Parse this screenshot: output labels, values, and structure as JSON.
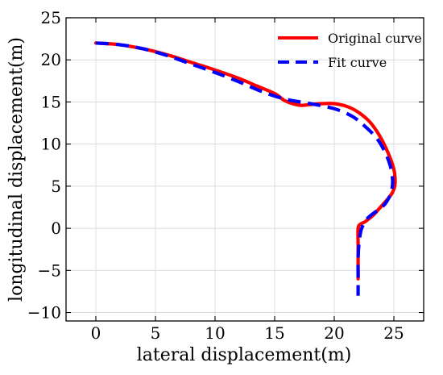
{
  "chart_data": {
    "type": "line",
    "title": "",
    "xlabel": "lateral displacement(m)",
    "ylabel": "longitudinal displacement(m)",
    "xlim": [
      -2.5,
      27.5
    ],
    "ylim": [
      -11,
      25
    ],
    "xticks": [
      0,
      5,
      10,
      15,
      20,
      25
    ],
    "yticks": [
      -10,
      -5,
      0,
      5,
      10,
      15,
      20,
      25
    ],
    "xtick_labels": [
      "0",
      "5",
      "10",
      "15",
      "20",
      "25"
    ],
    "ytick_labels": [
      "−10",
      "−5",
      "0",
      "5",
      "10",
      "15",
      "20",
      "25"
    ],
    "grid": true,
    "legend_position": "top-right",
    "series": [
      {
        "name": "Original curve",
        "color": "#ff0000",
        "style": "solid",
        "x": [
          0,
          2,
          4,
          6,
          8,
          10,
          12,
          13.5,
          15,
          15.8,
          16.5,
          17.2,
          18,
          19,
          20,
          21,
          22,
          23,
          23.8,
          24.5,
          25,
          25.1,
          24.9,
          24.5,
          24,
          23.3,
          22.6,
          22.2,
          22.0,
          22.0,
          22.0,
          22.0
        ],
        "y": [
          22,
          21.8,
          21.3,
          20.6,
          19.7,
          18.8,
          17.8,
          16.9,
          16,
          15.2,
          14.8,
          14.6,
          14.7,
          14.8,
          14.8,
          14.5,
          13.8,
          12.6,
          11,
          9,
          7,
          5.3,
          4.3,
          3.5,
          2.7,
          1.6,
          0.8,
          0.5,
          0,
          -2,
          -4,
          -6
        ]
      },
      {
        "name": "Fit curve",
        "color": "#0000ff",
        "style": "dashed",
        "x": [
          0,
          2,
          4,
          6,
          8,
          10,
          12,
          14,
          16,
          18,
          20,
          21.5,
          22.5,
          23.5,
          24.2,
          24.7,
          24.9,
          24.7,
          24.2,
          23.5,
          22.8,
          22.3,
          22.1,
          22.0,
          22.0,
          22.0
        ],
        "y": [
          22,
          21.8,
          21.3,
          20.5,
          19.5,
          18.5,
          17.4,
          16.2,
          15.3,
          14.8,
          14.2,
          13.3,
          12.2,
          10.8,
          9.2,
          7.4,
          5.5,
          4,
          2.8,
          2,
          1.2,
          0,
          -1.5,
          -3.5,
          -6,
          -8
        ]
      }
    ]
  }
}
